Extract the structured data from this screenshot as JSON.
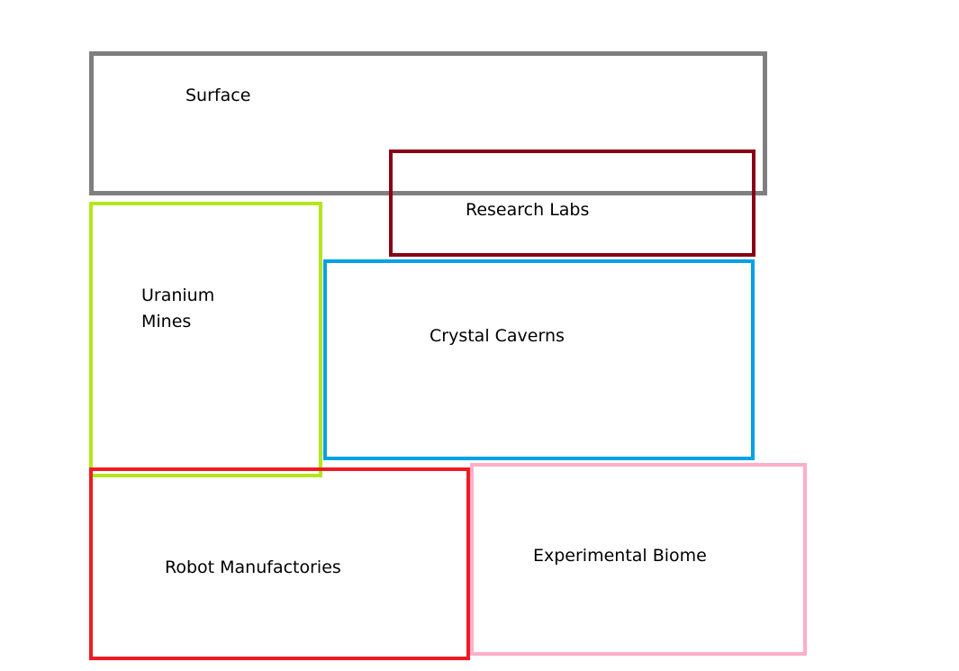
{
  "zones": {
    "surface": {
      "label": "Surface",
      "color": "#7f7f7f"
    },
    "research": {
      "label": "Research Labs",
      "color": "#880015"
    },
    "uranium": {
      "label_line1": "Uranium",
      "label_line2": "Mines",
      "color": "#b5e61d"
    },
    "crystal": {
      "label": "Crystal Caverns",
      "color": "#00a2e8"
    },
    "robot": {
      "label": "Robot Manufactories",
      "color": "#ed1c24"
    },
    "biome": {
      "label": "Experimental Biome",
      "color": "#ffaec9"
    }
  }
}
